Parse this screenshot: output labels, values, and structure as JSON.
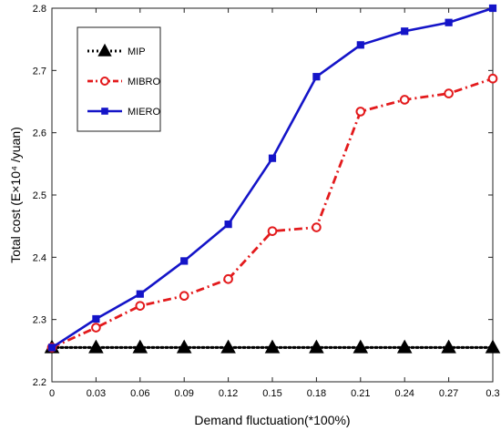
{
  "chart_data": {
    "type": "line",
    "xlabel": "Demand fluctuation(*100%)",
    "ylabel": "Total cost (E×10⁴ /yuan)",
    "x": [
      0,
      0.03,
      0.06,
      0.09,
      0.12,
      0.15,
      0.18,
      0.21,
      0.24,
      0.27,
      0.3
    ],
    "x_tick_labels": [
      "0",
      "0.03",
      "0.06",
      "0.09",
      "0.12",
      "0.15",
      "0.18",
      "0.21",
      "0.24",
      "0.27",
      "0.3"
    ],
    "y_ticks": [
      2.2,
      2.3,
      2.4,
      2.5,
      2.6,
      2.7,
      2.8
    ],
    "y_tick_labels": [
      "2.2",
      "2.3",
      "2.4",
      "2.5",
      "2.6",
      "2.7",
      "2.8"
    ],
    "xlim": [
      0,
      0.3
    ],
    "ylim": [
      2.2,
      2.8
    ],
    "grid": false,
    "legend_position": "top-left",
    "series": [
      {
        "name": "MIP",
        "color": "#000000",
        "line_style": "dotted",
        "marker": "triangle",
        "values": [
          2.255,
          2.255,
          2.255,
          2.255,
          2.255,
          2.255,
          2.255,
          2.255,
          2.255,
          2.255,
          2.255
        ]
      },
      {
        "name": "MIBRO",
        "color": "#e31a1c",
        "line_style": "dashdot",
        "marker": "circle",
        "values": [
          2.255,
          2.287,
          2.322,
          2.338,
          2.365,
          2.442,
          2.448,
          2.634,
          2.653,
          2.663,
          2.687
        ]
      },
      {
        "name": "MIERO",
        "color": "#1414c8",
        "line_style": "solid",
        "marker": "square",
        "values": [
          2.255,
          2.301,
          2.341,
          2.394,
          2.453,
          2.559,
          2.69,
          2.741,
          2.763,
          2.777,
          2.8
        ]
      }
    ]
  }
}
